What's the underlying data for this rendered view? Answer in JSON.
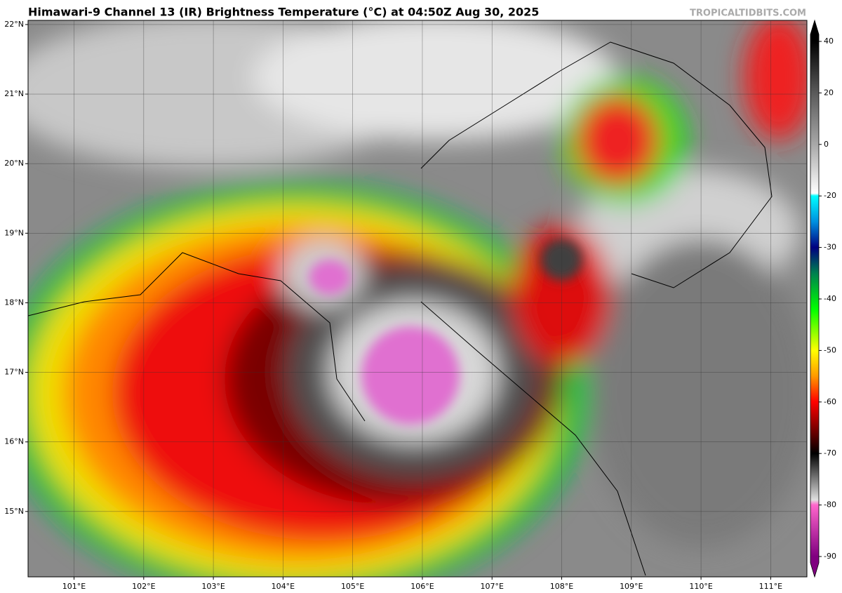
{
  "chart_data": {
    "type": "map",
    "title": "Himawari-9 Channel 13 (IR) Brightness Temperature (°C) at 04:50Z Aug 30, 2025",
    "credit": "TROPICALTIDBITS.COM",
    "xlim": [
      100.34,
      111.52
    ],
    "ylim": [
      14.06,
      22.06
    ],
    "xticks": [
      {
        "value": 101,
        "label": "101°E"
      },
      {
        "value": 102,
        "label": "102°E"
      },
      {
        "value": 103,
        "label": "103°E"
      },
      {
        "value": 104,
        "label": "104°E"
      },
      {
        "value": 105,
        "label": "105°E"
      },
      {
        "value": 106,
        "label": "106°E"
      },
      {
        "value": 107,
        "label": "107°E"
      },
      {
        "value": 108,
        "label": "108°E"
      },
      {
        "value": 109,
        "label": "109°E"
      },
      {
        "value": 110,
        "label": "110°E"
      },
      {
        "value": 111,
        "label": "111°E"
      }
    ],
    "yticks": [
      {
        "value": 15,
        "label": "15°N"
      },
      {
        "value": 16,
        "label": "16°N"
      },
      {
        "value": 17,
        "label": "17°N"
      },
      {
        "value": 18,
        "label": "18°N"
      },
      {
        "value": 19,
        "label": "19°N"
      },
      {
        "value": 20,
        "label": "20°N"
      },
      {
        "value": 21,
        "label": "21°N"
      },
      {
        "value": 22,
        "label": "22°N"
      }
    ],
    "grid": true,
    "colorbar": {
      "ticks": [
        40,
        20,
        0,
        -20,
        -30,
        -40,
        -50,
        -60,
        -70,
        -80,
        -90
      ],
      "colormap": [
        {
          "value": 40,
          "color": "#000000"
        },
        {
          "value": 20,
          "color": "#5a5a5a"
        },
        {
          "value": 0,
          "color": "#a8a8a8"
        },
        {
          "value": -19,
          "color": "#ffffff"
        },
        {
          "value": -20,
          "color": "#00ffff"
        },
        {
          "value": -25,
          "color": "#0090e0"
        },
        {
          "value": -30,
          "color": "#000080"
        },
        {
          "value": -35,
          "color": "#008050"
        },
        {
          "value": -42,
          "color": "#00ff00"
        },
        {
          "value": -50,
          "color": "#ffff00"
        },
        {
          "value": -55,
          "color": "#ff9900"
        },
        {
          "value": -60,
          "color": "#ff0000"
        },
        {
          "value": -65,
          "color": "#800000"
        },
        {
          "value": -70,
          "color": "#000000"
        },
        {
          "value": -79,
          "color": "#e0e0e0"
        },
        {
          "value": -80,
          "color": "#ff66cc"
        },
        {
          "value": -90,
          "color": "#800080"
        }
      ]
    }
  }
}
